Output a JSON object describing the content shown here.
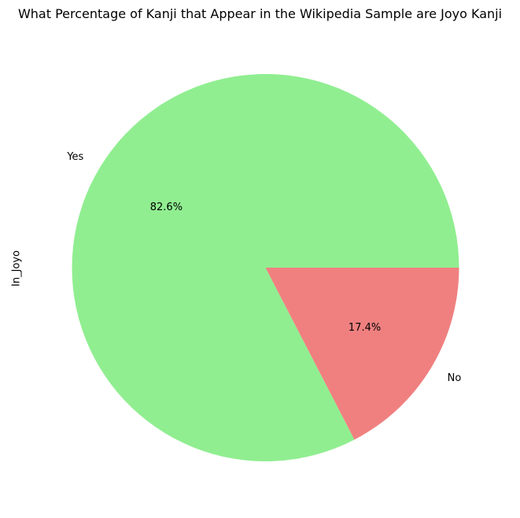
{
  "chart_data": {
    "type": "pie",
    "title": "What Percentage of Kanji that Appear in the Wikipedia Sample are Joyo Kanji",
    "ylabel": "In_Joyo",
    "start_angle_deg": 0,
    "direction": "counterclockwise",
    "legend": "none",
    "slices": [
      {
        "label": "Yes",
        "value": 82.6,
        "pct_label": "82.6%",
        "color": "#90ee90"
      },
      {
        "label": "No",
        "value": 17.4,
        "pct_label": "17.4%",
        "color": "#f08080"
      }
    ]
  }
}
